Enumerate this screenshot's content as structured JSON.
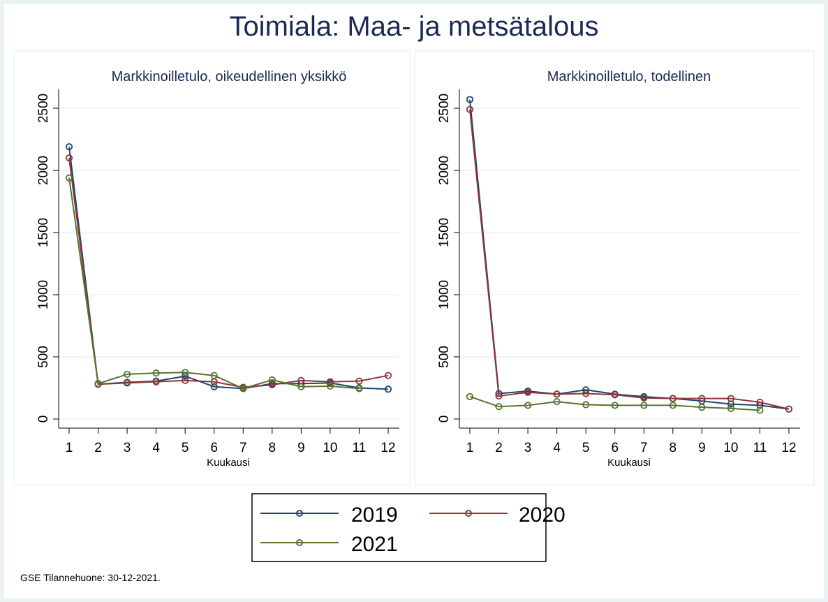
{
  "title": "Toimiala: Maa- ja metsätalous",
  "footer": "GSE Tilannehuone: 30-12-2021.",
  "legend": {
    "placement": "bottom-center",
    "items": [
      {
        "label": "2019",
        "color": "#1a476f"
      },
      {
        "label": "2020",
        "color": "#90353b"
      },
      {
        "label": "2021",
        "color": "#55752f"
      }
    ]
  },
  "chart_data": [
    {
      "type": "line",
      "title": "Markkinoilletulo, oikeudellinen yksikkö",
      "xlabel": "Kuukausi",
      "ylabel": "",
      "x": [
        1,
        2,
        3,
        4,
        5,
        6,
        7,
        8,
        9,
        10,
        11,
        12
      ],
      "xticks": [
        "1",
        "2",
        "3",
        "4",
        "5",
        "6",
        "7",
        "8",
        "9",
        "10",
        "11",
        "12"
      ],
      "yticks": [
        "0",
        "500",
        "1000",
        "1500",
        "2000",
        "2500"
      ],
      "ylim": [
        0,
        2500
      ],
      "grid": true,
      "series": [
        {
          "name": "2019",
          "color": "#1a476f",
          "values": [
            2190,
            280,
            295,
            305,
            345,
            260,
            245,
            285,
            285,
            290,
            250,
            240
          ]
        },
        {
          "name": "2020",
          "color": "#90353b",
          "values": [
            2100,
            280,
            290,
            300,
            310,
            300,
            255,
            275,
            310,
            300,
            305,
            350
          ]
        },
        {
          "name": "2021",
          "color": "#55752f",
          "values": [
            1940,
            285,
            360,
            370,
            375,
            350,
            245,
            315,
            260,
            265,
            245,
            null
          ]
        }
      ]
    },
    {
      "type": "line",
      "title": "Markkinoilletulo, todellinen",
      "xlabel": "Kuukausi",
      "ylabel": "",
      "x": [
        1,
        2,
        3,
        4,
        5,
        6,
        7,
        8,
        9,
        10,
        11,
        12
      ],
      "xticks": [
        "1",
        "2",
        "3",
        "4",
        "5",
        "6",
        "7",
        "8",
        "9",
        "10",
        "11",
        "12"
      ],
      "yticks": [
        "0",
        "500",
        "1000",
        "1500",
        "2000",
        "2500"
      ],
      "ylim": [
        0,
        2500
      ],
      "grid": true,
      "series": [
        {
          "name": "2019",
          "color": "#1a476f",
          "values": [
            2570,
            205,
            225,
            200,
            235,
            200,
            180,
            165,
            145,
            120,
            110,
            80
          ]
        },
        {
          "name": "2020",
          "color": "#90353b",
          "values": [
            2490,
            185,
            215,
            200,
            205,
            195,
            170,
            165,
            165,
            165,
            135,
            80
          ]
        },
        {
          "name": "2021",
          "color": "#55752f",
          "values": [
            180,
            100,
            110,
            140,
            115,
            110,
            110,
            110,
            95,
            85,
            70,
            null
          ]
        }
      ]
    }
  ]
}
